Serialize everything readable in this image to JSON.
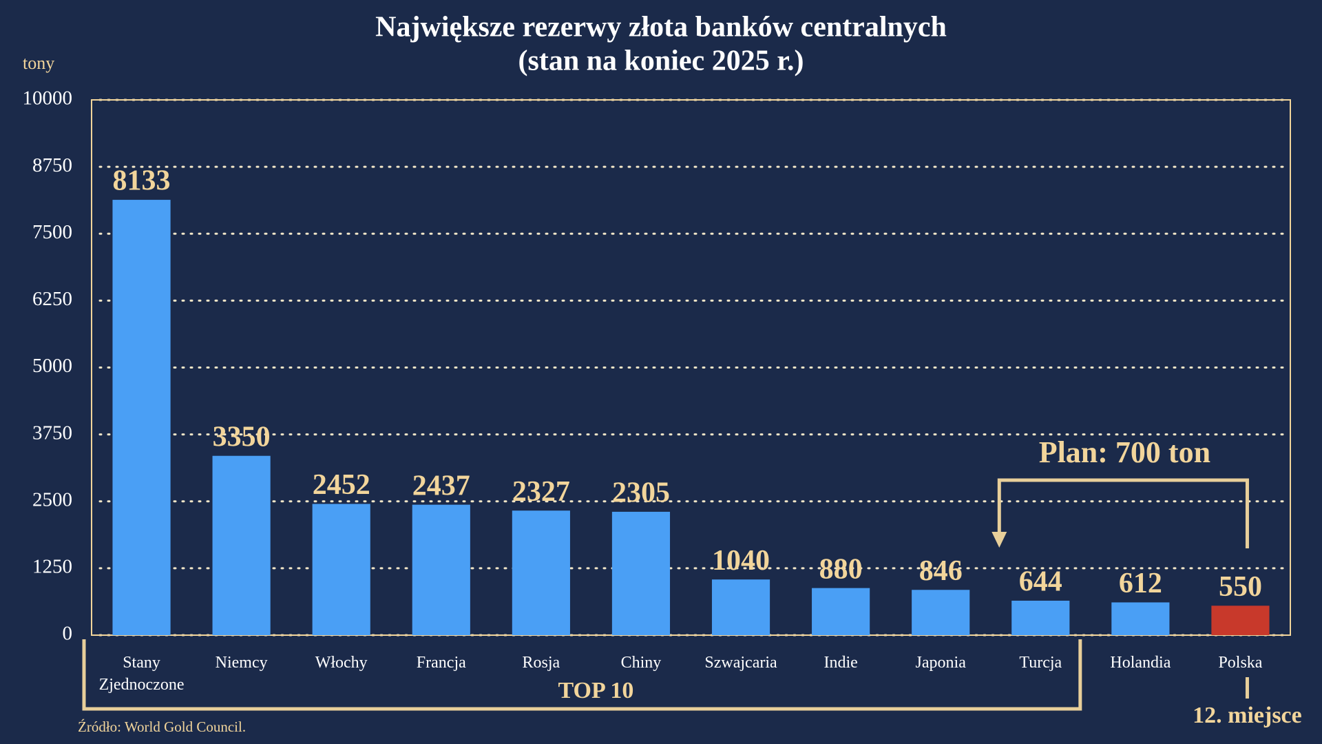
{
  "chart_data": {
    "type": "bar",
    "title": "Największe rezerwy złota banków centralnych",
    "subtitle": "(stan na koniec 2025 r.)",
    "y_label": "tony",
    "categories": [
      "Stany Zjednoczone",
      "Niemcy",
      "Włochy",
      "Francja",
      "Rosja",
      "Chiny",
      "Szwajcaria",
      "Indie",
      "Japonia",
      "Turcja",
      "Holandia",
      "Polska"
    ],
    "values": [
      8133,
      3350,
      2452,
      2437,
      2327,
      2305,
      1040,
      880,
      846,
      644,
      612,
      550
    ],
    "colors": [
      "#4a9ff5",
      "#4a9ff5",
      "#4a9ff5",
      "#4a9ff5",
      "#4a9ff5",
      "#4a9ff5",
      "#4a9ff5",
      "#4a9ff5",
      "#4a9ff5",
      "#4a9ff5",
      "#4a9ff5",
      "#c8392b"
    ],
    "ylim": [
      0,
      10000
    ],
    "yticks": [
      0,
      1250,
      2500,
      3750,
      5000,
      6250,
      7500,
      8750,
      10000
    ],
    "grid": true,
    "annotations": {
      "plan": "Plan: 700 ton",
      "top": "TOP 10",
      "rank": "12. miejsce"
    },
    "source": "Źródło: World Gold Council."
  }
}
